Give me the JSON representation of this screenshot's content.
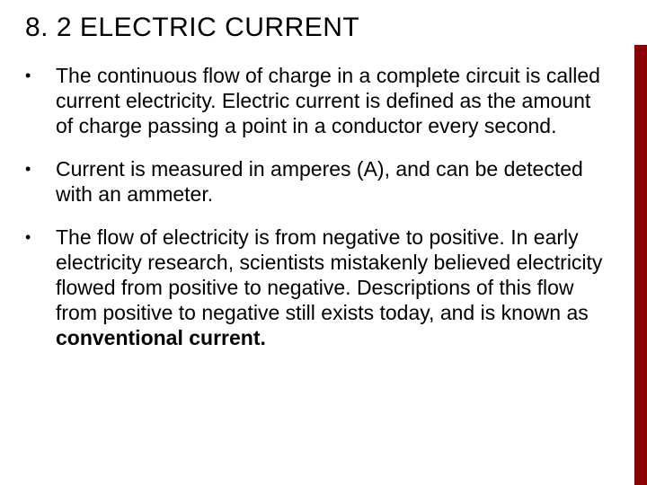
{
  "accent_color": "#8b0000",
  "background_color": "#ffffff",
  "text_color": "#000000",
  "title": {
    "text": "8. 2 ELECTRIC CURRENT",
    "fontsize": 30,
    "font_weight": 400
  },
  "body_fontsize": 23,
  "bullets": [
    {
      "text": "The continuous flow of charge in a complete circuit is called current electricity. Electric current is defined as the amount of charge passing a point in a conductor every second."
    },
    {
      "text": "Current is measured in amperes (A), and can be detected with an ammeter."
    },
    {
      "text_parts": [
        {
          "t": "The flow of electricity is from negative to positive. In early electricity research, scientists mistakenly believed electricity flowed from positive to negative. Descriptions of this flow from positive to negative still exists today, and is known as ",
          "bold": false
        },
        {
          "t": "conventional current.",
          "bold": true
        }
      ]
    }
  ]
}
